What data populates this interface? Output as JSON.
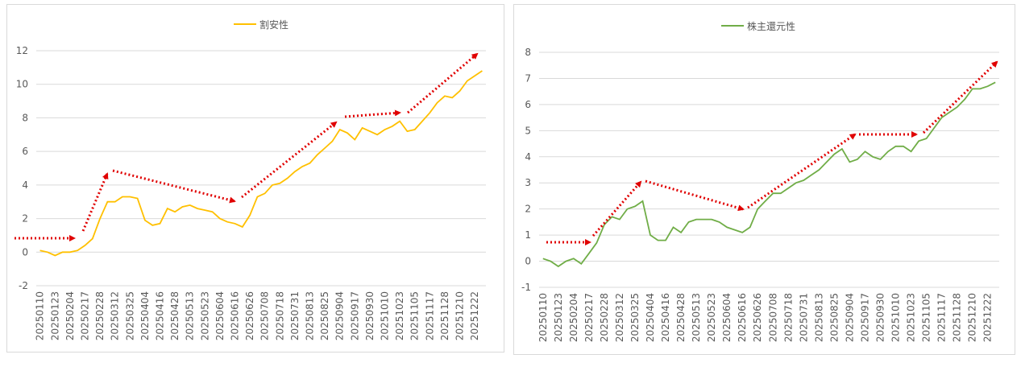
{
  "chart_data": [
    {
      "type": "line",
      "categories": [
        "20250110",
        null,
        "20250123",
        null,
        "20250204",
        null,
        "20250217",
        null,
        "20250228",
        null,
        "20250312",
        null,
        "20250325",
        null,
        "20250404",
        null,
        "20250416",
        null,
        "20250428",
        null,
        "20250513",
        null,
        "20250523",
        null,
        "20250604",
        null,
        "20250616",
        null,
        "20250626",
        null,
        "20250708",
        null,
        "20250718",
        null,
        "20250731",
        null,
        "20250813",
        null,
        "20250825",
        null,
        "20250904",
        null,
        "20250917",
        null,
        "20250930",
        null,
        "20251010",
        null,
        "20251023",
        null,
        "20251105",
        null,
        "20251117",
        null,
        "20251128",
        null,
        "20251210",
        null,
        "20251222",
        null
      ],
      "series": [
        {
          "name": "割安性",
          "color": "#ffc000",
          "values": [
            0.1,
            0.0,
            -0.2,
            0.0,
            0.0,
            0.1,
            0.4,
            0.8,
            2.0,
            3.0,
            3.0,
            3.3,
            3.3,
            3.2,
            1.9,
            1.6,
            1.7,
            2.6,
            2.4,
            2.7,
            2.8,
            2.6,
            2.5,
            2.4,
            2.0,
            1.8,
            1.7,
            1.5,
            2.2,
            3.3,
            3.5,
            4.0,
            4.1,
            4.4,
            4.8,
            5.1,
            5.3,
            5.8,
            6.2,
            6.6,
            7.3,
            7.1,
            6.7,
            7.4,
            7.2,
            7.0,
            7.3,
            7.5,
            7.8,
            7.2,
            7.3,
            7.8,
            8.3,
            8.9,
            9.3,
            9.2,
            9.6,
            10.2,
            10.5,
            10.8
          ]
        }
      ],
      "ylim": [
        -2,
        12
      ],
      "yticks": [
        -2,
        0,
        2,
        4,
        6,
        8,
        10,
        12
      ],
      "grid": true,
      "legend": "top"
    },
    {
      "type": "line",
      "categories": [
        "20250110",
        null,
        "20250123",
        null,
        "20250204",
        null,
        "20250217",
        null,
        "20250228",
        null,
        "20250312",
        null,
        "20250325",
        null,
        "20250404",
        null,
        "20250416",
        null,
        "20250428",
        null,
        "20250513",
        null,
        "20250523",
        null,
        "20250604",
        null,
        "20250616",
        null,
        "20250626",
        null,
        "20250708",
        null,
        "20250718",
        null,
        "20250731",
        null,
        "20250813",
        null,
        "20250825",
        null,
        "20250904",
        null,
        "20250917",
        null,
        "20250930",
        null,
        "20251010",
        null,
        "20251023",
        null,
        "20251105",
        null,
        "20251117",
        null,
        "20251128",
        null,
        "20251210",
        null,
        "20251222",
        null
      ],
      "series": [
        {
          "name": "株主還元性",
          "color": "#70ad47",
          "values": [
            0.1,
            0.0,
            -0.2,
            0.0,
            0.1,
            -0.1,
            0.3,
            0.7,
            1.4,
            1.7,
            1.6,
            2.0,
            2.1,
            2.3,
            1.0,
            0.8,
            0.8,
            1.3,
            1.1,
            1.5,
            1.6,
            1.6,
            1.6,
            1.5,
            1.3,
            1.2,
            1.1,
            1.3,
            2.0,
            2.3,
            2.6,
            2.6,
            2.8,
            3.0,
            3.1,
            3.3,
            3.5,
            3.8,
            4.1,
            4.3,
            3.8,
            3.9,
            4.2,
            4.0,
            3.9,
            4.2,
            4.4,
            4.4,
            4.2,
            4.6,
            4.7,
            5.1,
            5.5,
            5.7,
            5.9,
            6.2,
            6.6,
            6.6,
            6.7,
            6.85
          ]
        }
      ],
      "ylim": [
        -1,
        8
      ],
      "yticks": [
        -1,
        0,
        1,
        2,
        3,
        4,
        5,
        6,
        7,
        8
      ],
      "grid": true,
      "legend": "top"
    }
  ]
}
